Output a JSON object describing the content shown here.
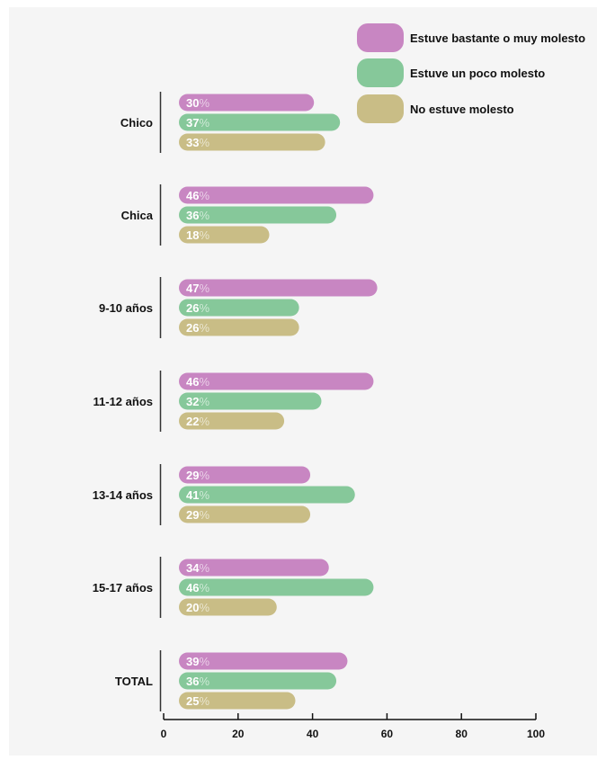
{
  "chart_data": {
    "type": "bar",
    "orientation": "horizontal",
    "categories": [
      "Chico",
      "Chica",
      "9-10 años",
      "11-12 años",
      "13-14 años",
      "15-17 años",
      "TOTAL"
    ],
    "series": [
      {
        "name": "Estuve bastante o muy molesto",
        "color": "#c886c2",
        "values": [
          30,
          46,
          47,
          46,
          29,
          34,
          39
        ]
      },
      {
        "name": "Estuve un poco molesto",
        "color": "#86c89a",
        "values": [
          37,
          36,
          26,
          32,
          41,
          46,
          36
        ]
      },
      {
        "name": "No estuve molesto",
        "color": "#c9bd86",
        "values": [
          33,
          18,
          26,
          22,
          29,
          20,
          25
        ]
      }
    ],
    "value_suffix": "%",
    "xlim": [
      0,
      100
    ],
    "xticks": [
      0,
      20,
      40,
      60,
      80,
      100
    ],
    "legend_position": "top-right",
    "grid": false
  }
}
